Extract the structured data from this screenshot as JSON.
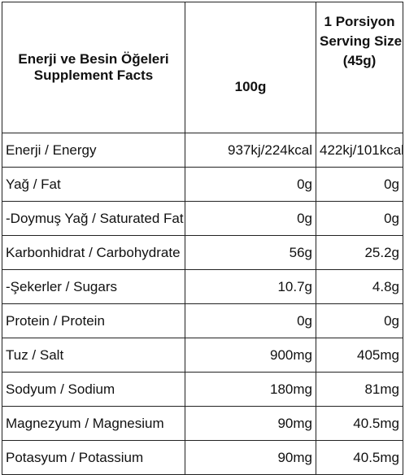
{
  "table": {
    "header": {
      "name_line1": "Enerji ve Besin Öğeleri",
      "name_line2": "Supplement Facts",
      "per100": "100g",
      "serving_line1": "1 Porsiyon",
      "serving_line2": "Serving Size",
      "serving_line3": "(45g)"
    },
    "rows": [
      {
        "name": "Enerji / Energy",
        "per100": "937kj/224kcal",
        "serving": "422kj/101kcal"
      },
      {
        "name": "Yağ / Fat",
        "per100": "0g",
        "serving": "0g"
      },
      {
        "name": "-Doymuş Yağ / Saturated Fat",
        "per100": "0g",
        "serving": "0g"
      },
      {
        "name": "Karbonhidrat / Carbohydrate",
        "per100": "56g",
        "serving": "25.2g"
      },
      {
        "name": "-Şekerler / Sugars",
        "per100": "10.7g",
        "serving": "4.8g"
      },
      {
        "name": "Protein / Protein",
        "per100": "0g",
        "serving": "0g"
      },
      {
        "name": "Tuz / Salt",
        "per100": "900mg",
        "serving": "405mg"
      },
      {
        "name": "Sodyum / Sodium",
        "per100": "180mg",
        "serving": "81mg"
      },
      {
        "name": "Magnezyum / Magnesium",
        "per100": "90mg",
        "serving": "40.5mg"
      },
      {
        "name": "Potasyum / Potassium",
        "per100": "90mg",
        "serving": "40.5mg"
      }
    ]
  }
}
